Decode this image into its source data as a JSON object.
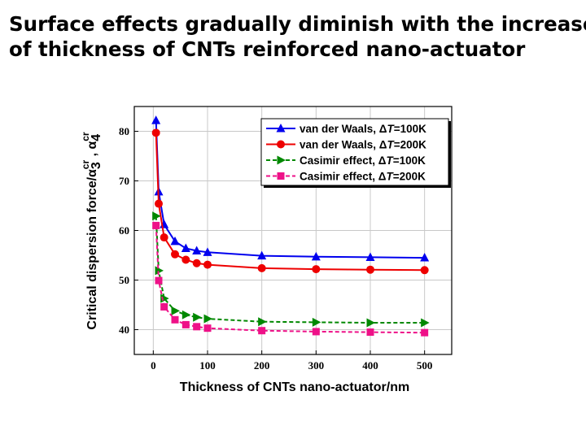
{
  "slide": {
    "title_line1": "Surface effects gradually diminish with the increase",
    "title_line2": "of thickness of CNTs reinforced nano-actuator"
  },
  "chart_data": {
    "type": "line",
    "xlabel": "Thickness of CNTs nano-actuator/nm",
    "ylabel": "Critical dispersion force/α3cr , α4cr",
    "xlim": [
      -35,
      550
    ],
    "ylim": [
      35,
      85
    ],
    "xticks": [
      0,
      100,
      200,
      300,
      400,
      500
    ],
    "yticks": [
      40,
      50,
      60,
      70,
      80
    ],
    "grid": true,
    "legend_position": "top-right",
    "series": [
      {
        "name": "van der Waals, ΔT=100K",
        "color": "#0000ee",
        "marker": "triangle-up",
        "dash": "solid",
        "x": [
          5,
          10,
          20,
          40,
          60,
          80,
          100,
          200,
          300,
          400,
          500
        ],
        "y": [
          82.2,
          67.8,
          61.2,
          57.8,
          56.4,
          55.9,
          55.6,
          54.9,
          54.7,
          54.6,
          54.5
        ]
      },
      {
        "name": "van der Waals, ΔT=200K",
        "color": "#ee0000",
        "marker": "circle",
        "dash": "solid",
        "x": [
          5,
          10,
          20,
          40,
          60,
          80,
          100,
          200,
          300,
          400,
          500
        ],
        "y": [
          79.7,
          65.4,
          58.6,
          55.2,
          54.1,
          53.4,
          53.1,
          52.4,
          52.2,
          52.1,
          52.0
        ]
      },
      {
        "name": "Casimir effect,  ΔT=100K",
        "color": "#008800",
        "marker": "triangle-right",
        "dash": "dashed",
        "x": [
          5,
          10,
          20,
          40,
          60,
          80,
          100,
          200,
          300,
          400,
          500
        ],
        "y": [
          62.9,
          51.9,
          46.3,
          43.8,
          43.0,
          42.5,
          42.2,
          41.6,
          41.5,
          41.4,
          41.4
        ]
      },
      {
        "name": "Casimir effect,  ΔT=200K",
        "color": "#ee1188",
        "marker": "square",
        "dash": "dashed",
        "x": [
          5,
          10,
          20,
          40,
          60,
          80,
          100,
          200,
          300,
          400,
          500
        ],
        "y": [
          61.0,
          49.9,
          44.6,
          42.0,
          41.0,
          40.6,
          40.3,
          39.8,
          39.6,
          39.5,
          39.4
        ]
      }
    ]
  }
}
